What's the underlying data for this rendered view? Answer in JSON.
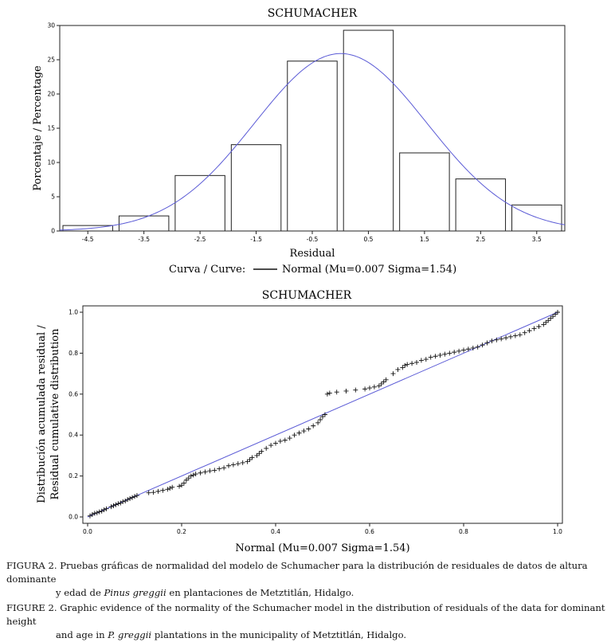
{
  "chart_data": [
    {
      "type": "bar",
      "title": "SCHUMACHER",
      "xlabel": "Residual",
      "ylabel": "Porcentaje / Percentage",
      "xlim": [
        -5,
        4
      ],
      "ylim": [
        0,
        30
      ],
      "bins": [
        [
          -5,
          -4
        ],
        [
          -4,
          -3
        ],
        [
          -3,
          -2
        ],
        [
          -2,
          -1
        ],
        [
          -1,
          0
        ],
        [
          0,
          1
        ],
        [
          1,
          2
        ],
        [
          2,
          3
        ],
        [
          3,
          4
        ]
      ],
      "values": [
        0.8,
        2.2,
        8.1,
        12.6,
        24.8,
        29.3,
        11.4,
        7.6,
        3.8
      ],
      "xticks": [
        "-4.5",
        "-3.5",
        "-2.5",
        "-1.5",
        "-0.5",
        "0.5",
        "1.5",
        "2.5",
        "3.5"
      ],
      "xtick_values": [
        -4.5,
        -3.5,
        -2.5,
        -1.5,
        -0.5,
        0.5,
        1.5,
        2.5,
        3.5
      ],
      "yticks": [
        "0",
        "5",
        "10",
        "15",
        "20",
        "25",
        "30"
      ],
      "ytick_values": [
        0,
        5,
        10,
        15,
        20,
        25,
        30
      ],
      "curve": {
        "name": "Normal",
        "mu": 0.007,
        "sigma": 1.54,
        "peak_percent": 25.9,
        "color": "#5b5bd6"
      },
      "legend_prefix": "Curva / Curve:",
      "legend_label": "Normal (Mu=0.007 Sigma=1.54)"
    },
    {
      "type": "scatter",
      "title": "SCHUMACHER",
      "xlabel": "Normal (Mu=0.007 Sigma=1.54)",
      "ylabel_line1": "Distribución acumulada residual /",
      "ylabel_line2": "Residual cumulative distribution",
      "xlim": [
        0,
        1
      ],
      "ylim": [
        0,
        1
      ],
      "xticks": [
        "0.0",
        "0.2",
        "0.4",
        "0.6",
        "0.8",
        "1.0"
      ],
      "xtick_values": [
        0,
        0.2,
        0.4,
        0.6,
        0.8,
        1.0
      ],
      "yticks": [
        "0.0",
        "0.2",
        "0.4",
        "0.6",
        "0.8",
        "1.0"
      ],
      "ytick_values": [
        0,
        0.2,
        0.4,
        0.6,
        0.8,
        1.0
      ],
      "reference_line": {
        "from": [
          0,
          0
        ],
        "to": [
          1,
          1
        ],
        "color": "#5b5bd6"
      },
      "points": [
        [
          0.005,
          0.005
        ],
        [
          0.01,
          0.012
        ],
        [
          0.015,
          0.018
        ],
        [
          0.02,
          0.02
        ],
        [
          0.025,
          0.025
        ],
        [
          0.03,
          0.028
        ],
        [
          0.035,
          0.035
        ],
        [
          0.04,
          0.04
        ],
        [
          0.05,
          0.05
        ],
        [
          0.055,
          0.055
        ],
        [
          0.06,
          0.06
        ],
        [
          0.065,
          0.065
        ],
        [
          0.07,
          0.068
        ],
        [
          0.075,
          0.075
        ],
        [
          0.08,
          0.078
        ],
        [
          0.085,
          0.085
        ],
        [
          0.09,
          0.09
        ],
        [
          0.095,
          0.095
        ],
        [
          0.1,
          0.1
        ],
        [
          0.105,
          0.105
        ],
        [
          0.13,
          0.118
        ],
        [
          0.14,
          0.12
        ],
        [
          0.15,
          0.125
        ],
        [
          0.16,
          0.13
        ],
        [
          0.17,
          0.135
        ],
        [
          0.175,
          0.14
        ],
        [
          0.18,
          0.145
        ],
        [
          0.195,
          0.15
        ],
        [
          0.2,
          0.155
        ],
        [
          0.205,
          0.165
        ],
        [
          0.21,
          0.18
        ],
        [
          0.215,
          0.19
        ],
        [
          0.22,
          0.2
        ],
        [
          0.225,
          0.205
        ],
        [
          0.23,
          0.21
        ],
        [
          0.24,
          0.215
        ],
        [
          0.25,
          0.22
        ],
        [
          0.26,
          0.225
        ],
        [
          0.27,
          0.228
        ],
        [
          0.28,
          0.235
        ],
        [
          0.29,
          0.24
        ],
        [
          0.3,
          0.25
        ],
        [
          0.31,
          0.255
        ],
        [
          0.32,
          0.26
        ],
        [
          0.33,
          0.265
        ],
        [
          0.34,
          0.27
        ],
        [
          0.345,
          0.28
        ],
        [
          0.35,
          0.29
        ],
        [
          0.36,
          0.3
        ],
        [
          0.365,
          0.31
        ],
        [
          0.37,
          0.32
        ],
        [
          0.38,
          0.335
        ],
        [
          0.39,
          0.35
        ],
        [
          0.4,
          0.36
        ],
        [
          0.41,
          0.37
        ],
        [
          0.42,
          0.375
        ],
        [
          0.43,
          0.385
        ],
        [
          0.44,
          0.4
        ],
        [
          0.45,
          0.41
        ],
        [
          0.46,
          0.42
        ],
        [
          0.47,
          0.43
        ],
        [
          0.48,
          0.445
        ],
        [
          0.49,
          0.46
        ],
        [
          0.495,
          0.475
        ],
        [
          0.5,
          0.49
        ],
        [
          0.505,
          0.5
        ],
        [
          0.51,
          0.6
        ],
        [
          0.515,
          0.605
        ],
        [
          0.53,
          0.61
        ],
        [
          0.55,
          0.615
        ],
        [
          0.57,
          0.62
        ],
        [
          0.59,
          0.625
        ],
        [
          0.6,
          0.63
        ],
        [
          0.61,
          0.635
        ],
        [
          0.62,
          0.64
        ],
        [
          0.625,
          0.65
        ],
        [
          0.63,
          0.66
        ],
        [
          0.635,
          0.67
        ],
        [
          0.65,
          0.7
        ],
        [
          0.66,
          0.72
        ],
        [
          0.67,
          0.73
        ],
        [
          0.675,
          0.74
        ],
        [
          0.68,
          0.745
        ],
        [
          0.69,
          0.75
        ],
        [
          0.7,
          0.755
        ],
        [
          0.71,
          0.765
        ],
        [
          0.72,
          0.77
        ],
        [
          0.73,
          0.78
        ],
        [
          0.74,
          0.785
        ],
        [
          0.75,
          0.79
        ],
        [
          0.76,
          0.795
        ],
        [
          0.77,
          0.8
        ],
        [
          0.78,
          0.805
        ],
        [
          0.79,
          0.81
        ],
        [
          0.8,
          0.815
        ],
        [
          0.81,
          0.82
        ],
        [
          0.82,
          0.825
        ],
        [
          0.83,
          0.83
        ],
        [
          0.84,
          0.84
        ],
        [
          0.85,
          0.85
        ],
        [
          0.86,
          0.86
        ],
        [
          0.87,
          0.865
        ],
        [
          0.88,
          0.87
        ],
        [
          0.89,
          0.875
        ],
        [
          0.9,
          0.88
        ],
        [
          0.91,
          0.885
        ],
        [
          0.92,
          0.89
        ],
        [
          0.93,
          0.9
        ],
        [
          0.94,
          0.91
        ],
        [
          0.95,
          0.92
        ],
        [
          0.96,
          0.93
        ],
        [
          0.97,
          0.94
        ],
        [
          0.975,
          0.95
        ],
        [
          0.98,
          0.96
        ],
        [
          0.985,
          0.97
        ],
        [
          0.99,
          0.98
        ],
        [
          0.995,
          0.99
        ],
        [
          1.0,
          1.0
        ]
      ]
    }
  ],
  "caption": {
    "es_label": "FIGURA 2.",
    "es_text_a": " Pruebas gráficas de normalidad del modelo de Schumacher para la distribución de residuales de datos de altura dominante",
    "es_text_b": "y edad de ",
    "es_species": "Pinus greggii",
    "es_text_c": " en plantaciones de Metztitlán, Hidalgo.",
    "en_label": "FIGURE 2.",
    "en_text_a": " Graphic evidence of the normality of the Schumacher model in the distribution of residuals of the data for dominant height",
    "en_text_b": "and age in ",
    "en_species": "P. greggii",
    "en_text_c": " plantations in the municipality of Metztitlán, Hidalgo."
  }
}
